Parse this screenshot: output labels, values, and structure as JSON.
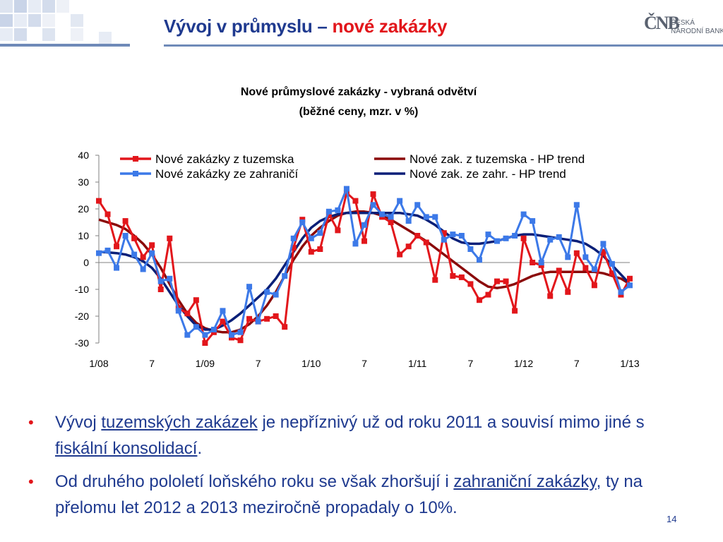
{
  "slide": {
    "title_main": "Vývoj v průmyslu – ",
    "title_accent": "nové zakázky",
    "logo_mark": "ČNB",
    "logo_line1": "ČESKÁ",
    "logo_line2": "NÁRODNÍ BANKA",
    "page_number": "14",
    "colors": {
      "title": "#1f3a8f",
      "accent": "#e2161b"
    }
  },
  "bullets": [
    {
      "parts": [
        {
          "text": "Vývoj ",
          "u": false
        },
        {
          "text": "tuzemských zakázek",
          "u": true
        },
        {
          "text": " je nepříznivý už od roku 2011 a souvisí mimo jiné s ",
          "u": false
        },
        {
          "text": "fiskální konsolidací",
          "u": true
        },
        {
          "text": ".",
          "u": false
        }
      ]
    },
    {
      "parts": [
        {
          "text": "Od druhého pololetí loňského roku se však zhoršují i ",
          "u": false
        },
        {
          "text": "zahraniční zakázky",
          "u": true
        },
        {
          "text": ", ty na přelomu let 2012 a 2013 meziročně propadaly o 10%.",
          "u": false
        }
      ]
    }
  ],
  "chart_data": {
    "type": "line",
    "title": "Nové průmyslové zakázky - vybraná odvětví",
    "subtitle": "(běžné ceny, mzr. v %)",
    "ylim": [
      -30,
      40
    ],
    "y_ticks": [
      40,
      30,
      20,
      10,
      0,
      -10,
      -20,
      -30
    ],
    "x_count": 61,
    "x_tick_labels": [
      {
        "i": 0,
        "label": "1/08"
      },
      {
        "i": 6,
        "label": "7"
      },
      {
        "i": 12,
        "label": "1/09"
      },
      {
        "i": 18,
        "label": "7"
      },
      {
        "i": 24,
        "label": "1/10"
      },
      {
        "i": 30,
        "label": "7"
      },
      {
        "i": 36,
        "label": "1/11"
      },
      {
        "i": 42,
        "label": "7"
      },
      {
        "i": 48,
        "label": "1/12"
      },
      {
        "i": 54,
        "label": "7"
      },
      {
        "i": 60,
        "label": "1/13"
      }
    ],
    "legend": {
      "position": "top"
    },
    "series": [
      {
        "name": "Nové zakázky z tuzemska",
        "color": "#e2161b",
        "marker": true,
        "values": [
          23,
          18,
          6,
          15.5,
          9,
          2,
          6.5,
          -10,
          9,
          -17,
          -19,
          -14,
          -30,
          -26,
          -22,
          -28,
          -29,
          -21,
          -22,
          -21,
          -20,
          -24,
          5.5,
          16,
          4,
          5,
          18,
          12,
          26,
          23,
          8,
          25.5,
          17,
          15,
          3,
          6,
          10,
          7.5,
          -6.5,
          11,
          -5,
          -5.5,
          -8,
          -14,
          -12,
          -7,
          -7,
          -18,
          9,
          0,
          -1,
          -12.5,
          -3,
          -11,
          3.5,
          -2,
          -8.5,
          4,
          -4,
          -12,
          -6
        ]
      },
      {
        "name": "Nové zakázky ze zahraničí",
        "color": "#3c79e8",
        "marker": true,
        "values": [
          3.5,
          4.5,
          -2,
          10,
          3,
          -2.5,
          3.5,
          -7,
          -6,
          -18,
          -27,
          -24,
          -27,
          -25,
          -18,
          -27,
          -26,
          -9,
          -22,
          -11,
          -12,
          -5,
          9,
          15,
          9,
          11,
          19,
          19.5,
          27.5,
          7,
          14,
          21.5,
          18,
          17,
          23,
          15.5,
          21.5,
          17,
          17,
          8.5,
          10.5,
          10,
          5,
          1,
          10.5,
          8,
          9,
          10,
          18,
          15.5,
          0,
          8.5,
          9.5,
          2,
          21.5,
          2,
          -2.5,
          7,
          -0.5,
          -11,
          -8.5
        ]
      },
      {
        "name": "Nové zak. z tuzemska - HP trend",
        "color": "#8b0a0a",
        "marker": false,
        "values": [
          16,
          15,
          14,
          12.5,
          10,
          7,
          3,
          -2,
          -8,
          -14,
          -19,
          -22.5,
          -24.5,
          -25.5,
          -26,
          -26,
          -25,
          -23,
          -20,
          -16,
          -11,
          -5,
          1,
          6,
          10,
          13,
          15.5,
          17.5,
          18.5,
          19,
          19,
          18.5,
          17.5,
          16,
          14,
          12,
          10,
          8,
          5.5,
          3,
          0.5,
          -2,
          -4.5,
          -7,
          -9,
          -9.5,
          -9,
          -8,
          -6.5,
          -5,
          -4,
          -3.5,
          -3.5,
          -3.5,
          -3.5,
          -3.5,
          -3.5,
          -4,
          -5,
          -6,
          -8
        ]
      },
      {
        "name": "Nové zak. ze zahr. - HP trend",
        "color": "#0a1f78",
        "marker": false,
        "values": [
          4,
          3.8,
          3.5,
          3,
          2,
          0.5,
          -2,
          -6,
          -11,
          -16,
          -20,
          -23.5,
          -25,
          -25,
          -23.5,
          -21.5,
          -19,
          -16,
          -13,
          -10,
          -6,
          -1,
          4,
          9,
          13,
          15.5,
          17,
          18,
          18.5,
          18.5,
          18.5,
          18.5,
          18.5,
          18.5,
          18.5,
          18,
          17.5,
          16,
          14,
          11.5,
          9,
          7.5,
          7,
          7,
          7.5,
          8,
          9,
          10,
          10.5,
          10.5,
          10,
          9.5,
          9,
          8.5,
          8,
          7,
          5,
          2.5,
          -1,
          -4.5,
          -8
        ]
      }
    ]
  }
}
